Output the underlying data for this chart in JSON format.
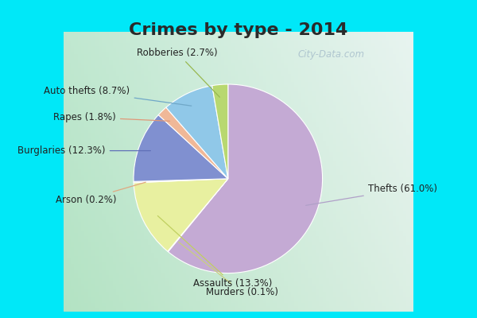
{
  "title": "Crimes by type - 2014",
  "title_fontsize": 16,
  "title_fontweight": "bold",
  "title_color": "#2a2a2a",
  "slices": [
    {
      "label": "Thefts (61.0%)",
      "value": 61.0,
      "color": "#c4aad4",
      "line_color": "#b0a0c8"
    },
    {
      "label": "Murders (0.1%)",
      "value": 0.1,
      "color": "#e8eea0",
      "line_color": "#c8d080"
    },
    {
      "label": "Assaults (13.3%)",
      "value": 13.3,
      "color": "#e8f0a0",
      "line_color": "#c0d060"
    },
    {
      "label": "Arson (0.2%)",
      "value": 0.2,
      "color": "#f5c8a0",
      "line_color": "#e0a880"
    },
    {
      "label": "Burglaries (12.3%)",
      "value": 12.3,
      "color": "#8090d0",
      "line_color": "#6070b8"
    },
    {
      "label": "Rapes (1.8%)",
      "value": 1.8,
      "color": "#f0b898",
      "line_color": "#e09878"
    },
    {
      "label": "Auto thefts (8.7%)",
      "value": 8.7,
      "color": "#90c8e8",
      "line_color": "#70a8c8"
    },
    {
      "label": "Robberies (2.7%)",
      "value": 2.7,
      "color": "#b8d870",
      "line_color": "#98b850"
    }
  ],
  "outer_background": "#00e8f8",
  "inner_bg_topleft": "#c8e8d8",
  "inner_bg_topright": "#e8f4f0",
  "inner_bg_bottomleft": "#c0e8d0",
  "inner_bg_bottomright": "#e0f0e8",
  "watermark": "City-Data.com",
  "label_fontsize": 8.5,
  "label_color": "#222222"
}
